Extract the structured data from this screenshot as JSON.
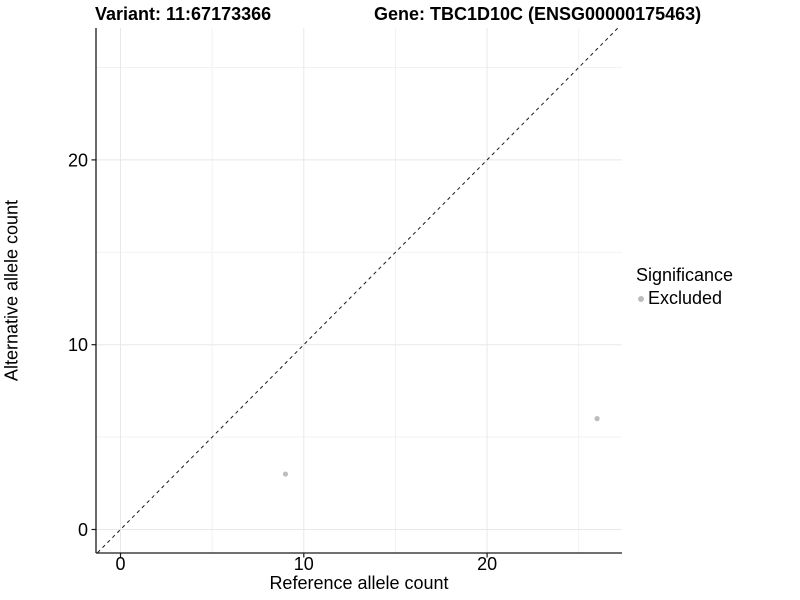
{
  "chart_data": {
    "type": "scatter",
    "title": {
      "left": "Variant: 11:67173366",
      "right": "Gene: TBC1D10C (ENSG00000175463)"
    },
    "xlabel": "Reference allele count",
    "ylabel": "Alternative allele count",
    "xlim": [
      -1.3,
      27.3
    ],
    "ylim": [
      -1.25,
      27.15
    ],
    "x_ticks": [
      0,
      10,
      20
    ],
    "y_ticks": [
      0,
      10,
      20
    ],
    "grid": {
      "major": [
        0,
        10,
        20
      ],
      "minor": [
        5,
        15,
        25
      ]
    },
    "series": [
      {
        "name": "Excluded",
        "color": "#bdbdbd",
        "marker": "circle",
        "points": [
          {
            "x": 9,
            "y": 3
          },
          {
            "x": 26,
            "y": 6
          }
        ]
      }
    ],
    "reference_line": {
      "kind": "identity",
      "equation": "y = x",
      "style": "dashed",
      "color": "#1a1a1a"
    },
    "legend": {
      "title": "Significance",
      "position": "right",
      "items": [
        {
          "label": "Excluded",
          "color": "#bdbdbd"
        }
      ]
    },
    "colors": {
      "background": "#ffffff",
      "axis": "#1a1a1a",
      "grid_major": "#e8e8e8",
      "grid_minor": "#f2f2f2",
      "point": "#bdbdbd",
      "text": "#000000"
    }
  }
}
